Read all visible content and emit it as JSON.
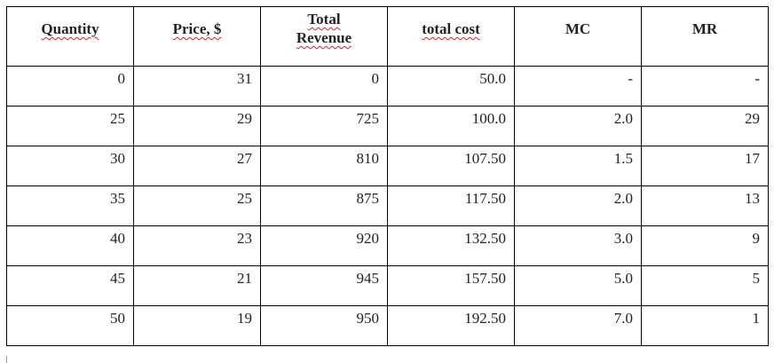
{
  "table": {
    "headers": [
      "Quantity",
      "Price, $",
      "Total Revenue",
      "total cost",
      "MC",
      "MR"
    ],
    "header_total_revenue_lines": [
      "Total",
      "Revenue"
    ],
    "rows": [
      [
        "0",
        "31",
        "0",
        "50.0",
        "-",
        "-"
      ],
      [
        "25",
        "29",
        "725",
        "100.0",
        "2.0",
        "29"
      ],
      [
        "30",
        "27",
        "810",
        "107.50",
        "1.5",
        "17"
      ],
      [
        "35",
        "25",
        "875",
        "117.50",
        "2.0",
        "13"
      ],
      [
        "40",
        "23",
        "920",
        "132.50",
        "3.0",
        "9"
      ],
      [
        "45",
        "21",
        "945",
        "157.50",
        "5.0",
        "5"
      ],
      [
        "50",
        "19",
        "950",
        "192.50",
        "7.0",
        "1"
      ]
    ]
  },
  "colors": {
    "spellcheck_underline": "#e02020",
    "border": "#000000"
  }
}
